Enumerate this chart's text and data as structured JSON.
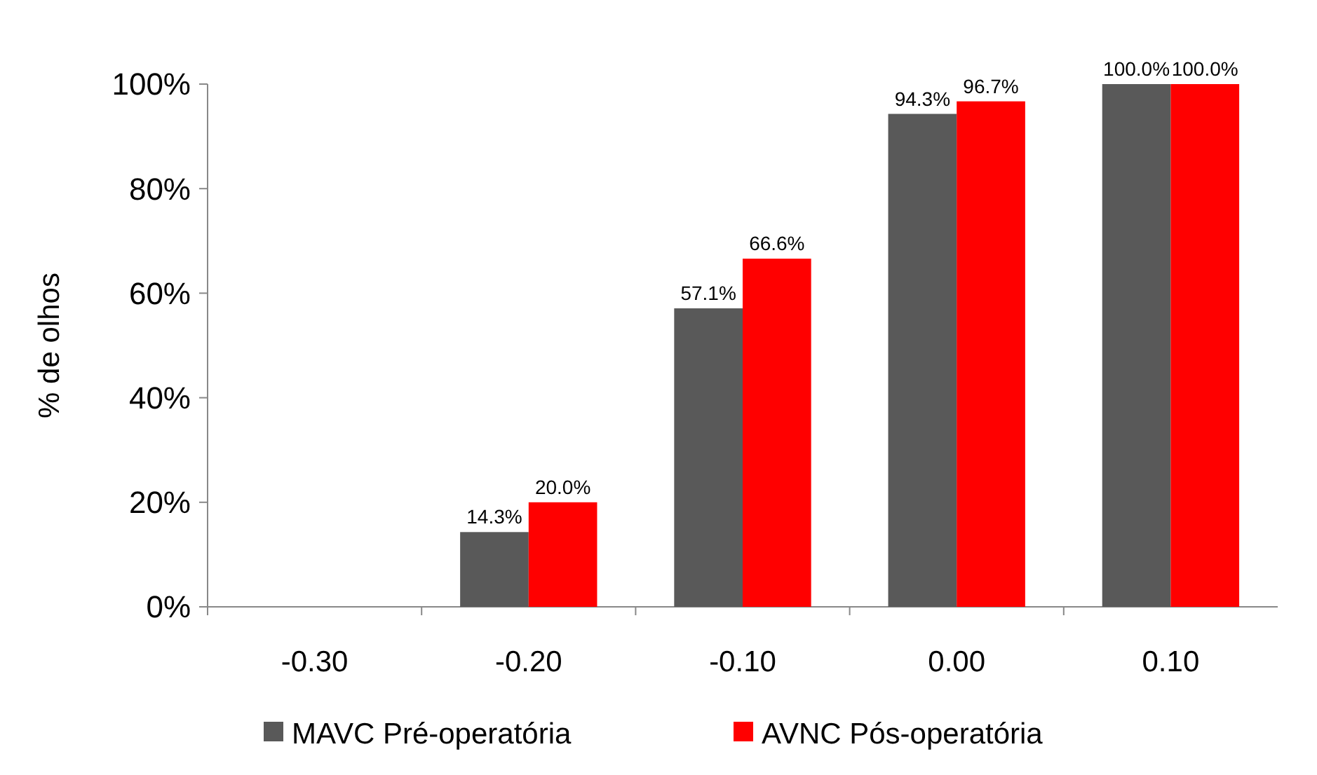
{
  "chart_data": {
    "type": "bar",
    "ylabel": "% de olhos",
    "categories": [
      "-0.30",
      "-0.20",
      "-0.10",
      "0.00",
      "0.10"
    ],
    "series": [
      {
        "name": "MAVC Pré-operatória",
        "color": "#595959",
        "values": [
          null,
          14.3,
          57.1,
          94.3,
          100.0
        ],
        "value_labels": [
          null,
          "14.3%",
          "57.1%",
          "94.3%",
          "100.0%"
        ]
      },
      {
        "name": "AVNC Pós-operatória",
        "color": "#ff0000",
        "values": [
          null,
          20.0,
          66.6,
          96.7,
          100.0
        ],
        "value_labels": [
          null,
          "20.0%",
          "66.6%",
          "96.7%",
          "100.0%"
        ]
      }
    ],
    "ylim": [
      0,
      100
    ],
    "yticks": [
      {
        "value": 0,
        "label": "0%"
      },
      {
        "value": 20,
        "label": "20%"
      },
      {
        "value": 40,
        "label": "40%"
      },
      {
        "value": 60,
        "label": "60%"
      },
      {
        "value": 80,
        "label": "80%"
      },
      {
        "value": 100,
        "label": "100%"
      }
    ],
    "grid": false,
    "legend": "bottom"
  }
}
